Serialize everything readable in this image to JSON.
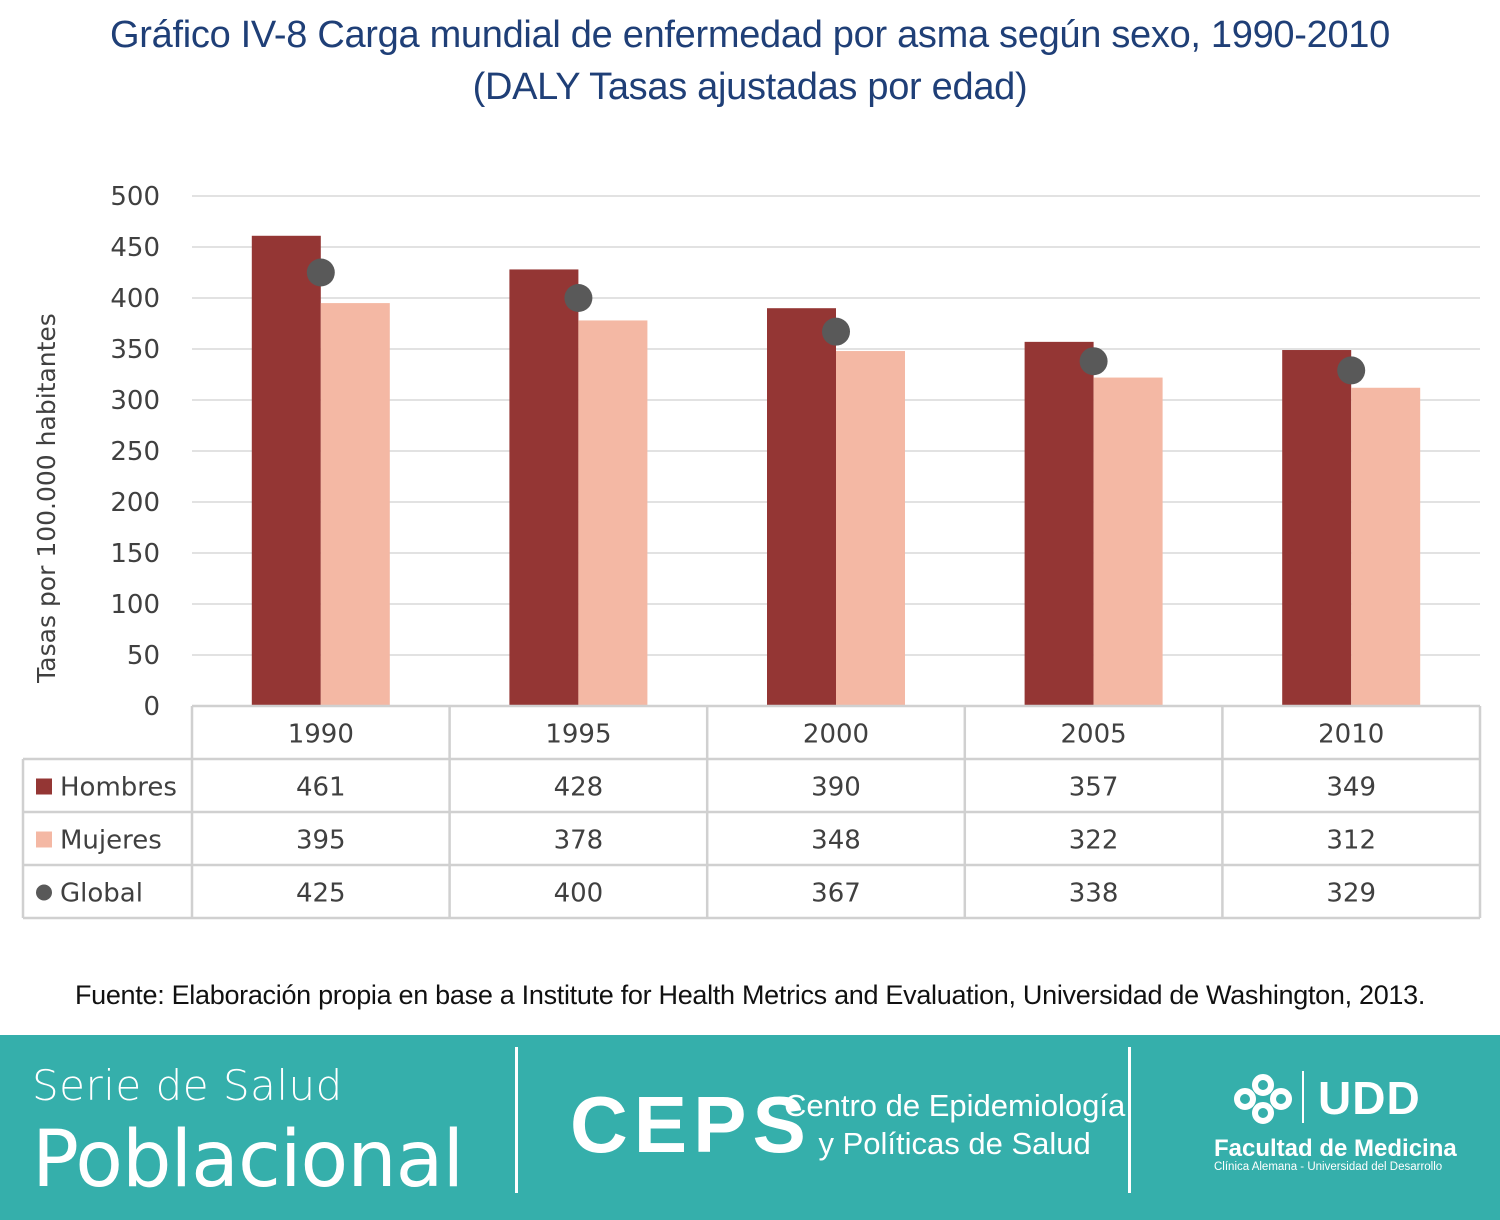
{
  "chart_data": {
    "type": "bar",
    "title": "Gráfico IV-8 Carga mundial de enfermedad por asma según sexo, 1990-2010",
    "subtitle": "(DALY Tasas ajustadas por edad)",
    "xlabel": "",
    "ylabel": "Tasas por 100.000 habitantes",
    "ylim": [
      0,
      500
    ],
    "yticks": [
      0,
      50,
      100,
      150,
      200,
      250,
      300,
      350,
      400,
      450,
      500
    ],
    "grid": true,
    "legend": "data-table",
    "categories": [
      "1990",
      "1995",
      "2000",
      "2005",
      "2010"
    ],
    "series": [
      {
        "name": "Hombres",
        "kind": "bar",
        "color": "#943634",
        "values": [
          461,
          428,
          390,
          357,
          349
        ]
      },
      {
        "name": "Mujeres",
        "kind": "bar",
        "color": "#f4b8a4",
        "values": [
          395,
          378,
          348,
          322,
          312
        ]
      },
      {
        "name": "Global",
        "kind": "marker",
        "color": "#595959",
        "values": [
          425,
          400,
          367,
          338,
          329
        ]
      }
    ],
    "source": "Fuente: Elaboración propia en base a Institute for Health Metrics and Evaluation, Universidad de Washington, 2013."
  },
  "footer": {
    "serie_line1": "Serie de Salud",
    "serie_line2": "Poblacional",
    "ceps_logo": "CEPS",
    "ceps_line1": "Centro de Epidemiología",
    "ceps_line2": "y Políticas de Salud",
    "udd_logo": "UDD",
    "udd_faculty": "Facultad de Medicina",
    "udd_subtitle": "Clínica Alemana - Universidad del Desarrollo"
  }
}
